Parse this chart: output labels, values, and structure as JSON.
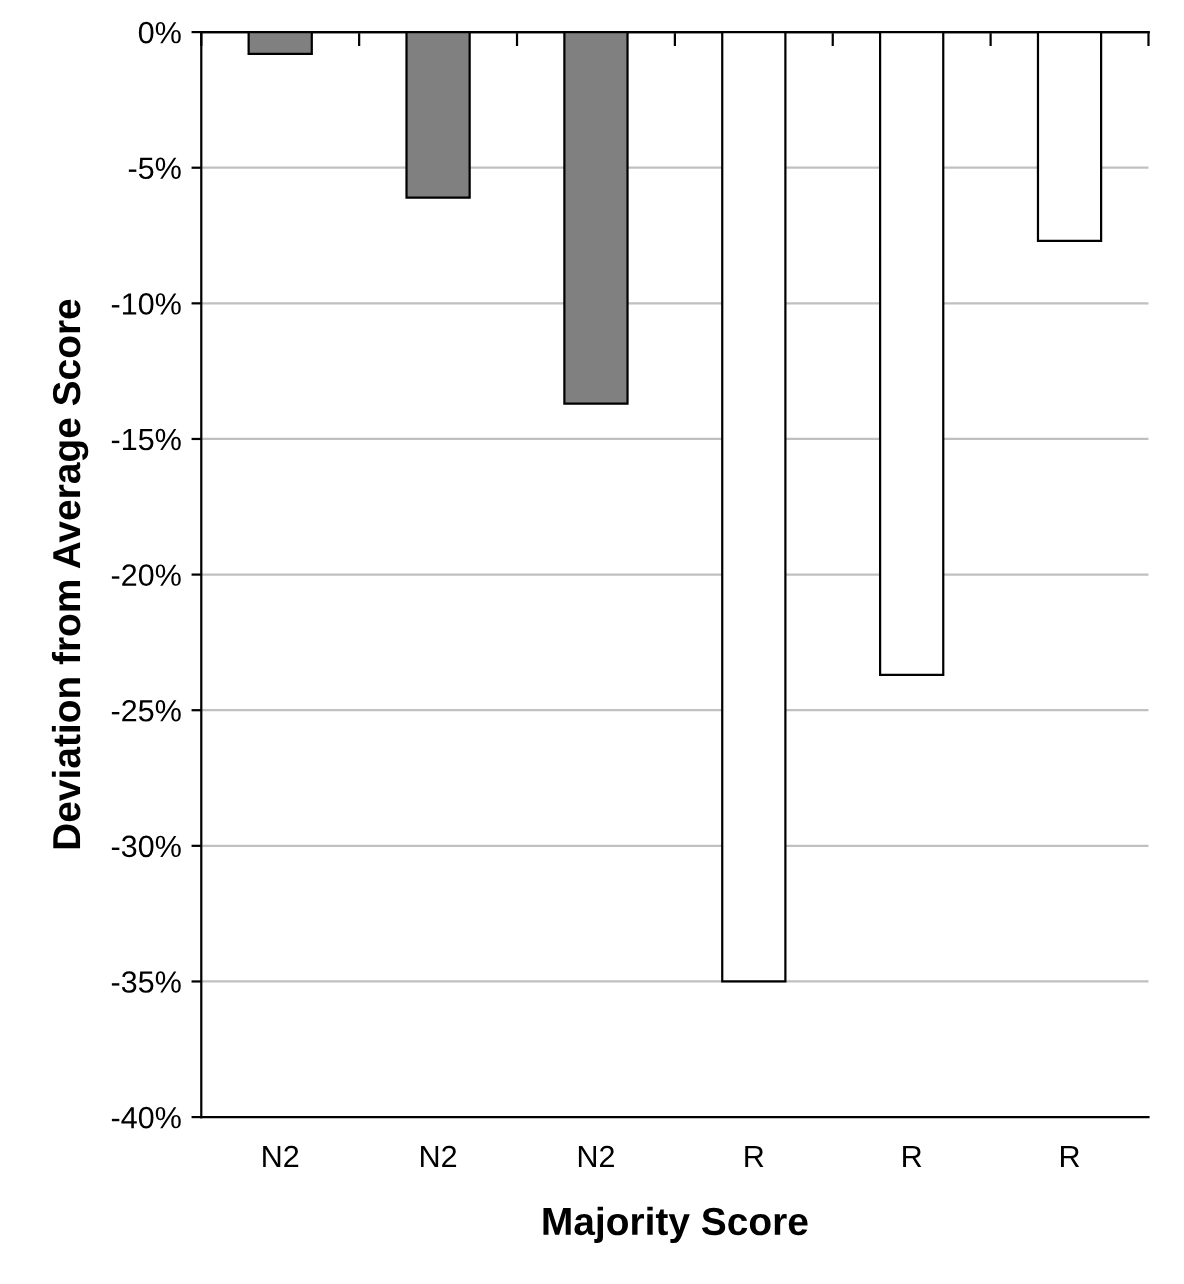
{
  "chart_data": {
    "type": "bar",
    "xlabel": "Majority Score",
    "ylabel": "Deviation from Average Score",
    "categories": [
      "N2",
      "N2",
      "N2",
      "R",
      "R",
      "R"
    ],
    "values": [
      -0.8,
      -6.1,
      -13.7,
      -35.0,
      -23.7,
      -7.7
    ],
    "colors": [
      "#808080",
      "#808080",
      "#808080",
      "#ffffff",
      "#ffffff",
      "#ffffff"
    ],
    "ylim": [
      -40,
      0
    ],
    "yticks": [
      {
        "value": -40,
        "label": "-40%"
      },
      {
        "value": -35,
        "label": "-35%"
      },
      {
        "value": -30,
        "label": "-30%"
      },
      {
        "value": -25,
        "label": "-25%"
      },
      {
        "value": -20,
        "label": "-20%"
      },
      {
        "value": -15,
        "label": "-15%"
      },
      {
        "value": -10,
        "label": "-10%"
      },
      {
        "value": -5,
        "label": "-5%"
      },
      {
        "value": 0,
        "label": "0%"
      }
    ],
    "grid": "y",
    "legend": false
  }
}
